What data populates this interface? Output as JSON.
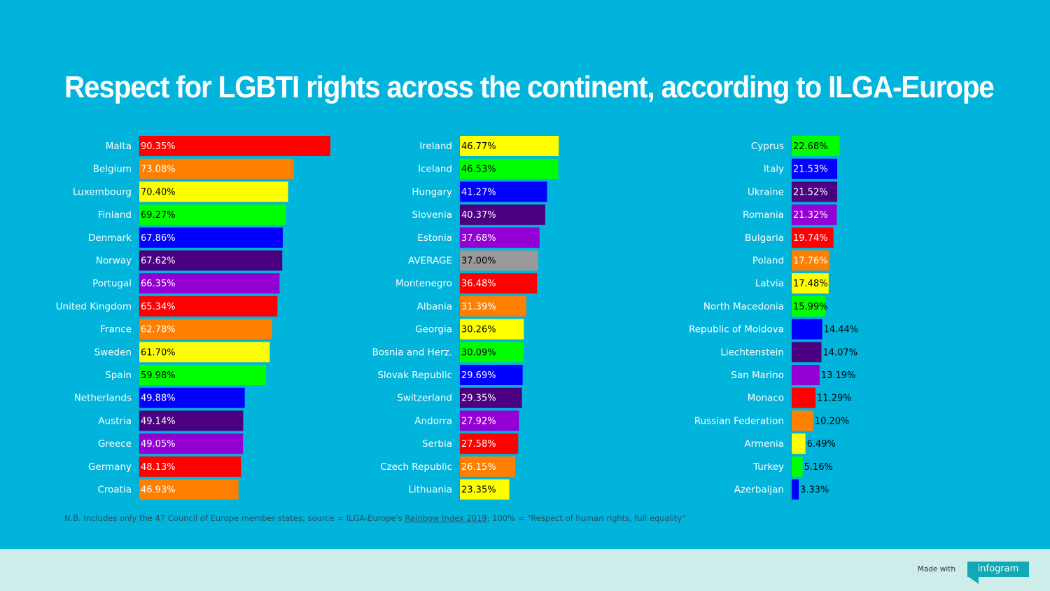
{
  "title": "Respect for LGBTI rights across the continent, according to ILGA-Europe",
  "footnote": {
    "prefix": "N.B. Includes only the 47 Council of Europe member states; source = ILGA-Europe's ",
    "link_text": "Rainbow Index 2019",
    "suffix": "; 100% = \"Respect of human rights, full equality\""
  },
  "footer": {
    "made_with": "Made with",
    "brand": "infogram"
  },
  "colors": {
    "background": "#00b4dc",
    "red": "#ff0000",
    "orange": "#ff8000",
    "yellow": "#ffff00",
    "green": "#00ff00",
    "blue": "#0000ff",
    "indigo": "#4b0082",
    "violet": "#9400d3",
    "gray": "#999999"
  },
  "chart_data": [
    {
      "type": "bar",
      "orientation": "horizontal",
      "title": "Respect for LGBTI rights across the continent, according to ILGA-Europe",
      "xlim": [
        0,
        100
      ],
      "value_suffix": "%",
      "categories": [
        "Malta",
        "Belgium",
        "Luxembourg",
        "Finland",
        "Denmark",
        "Norway",
        "Portugal",
        "United Kingdom",
        "France",
        "Sweden",
        "Spain",
        "Netherlands",
        "Austria",
        "Greece",
        "Germany",
        "Croatia"
      ],
      "values": [
        90.35,
        73.08,
        70.4,
        69.27,
        67.86,
        67.62,
        66.35,
        65.34,
        62.78,
        61.7,
        59.98,
        49.88,
        49.14,
        49.05,
        48.13,
        46.93
      ],
      "labels": [
        "90.35%",
        "73.08%",
        "70.40%",
        "69.27%",
        "67.86%",
        "67.62%",
        "66.35%",
        "65.34%",
        "62.78%",
        "61.70%",
        "59.98%",
        "49.88%",
        "49.14%",
        "49.05%",
        "48.13%",
        "46.93%"
      ],
      "bar_colors": [
        "red",
        "orange",
        "yellow",
        "green",
        "blue",
        "indigo",
        "violet",
        "red",
        "orange",
        "yellow",
        "green",
        "blue",
        "indigo",
        "violet",
        "red",
        "orange"
      ]
    },
    {
      "type": "bar",
      "orientation": "horizontal",
      "xlim": [
        0,
        100
      ],
      "value_suffix": "%",
      "categories": [
        "Ireland",
        "Iceland",
        "Hungary",
        "Slovenia",
        "Estonia",
        "AVERAGE",
        "Montenegro",
        "Albania",
        "Georgia",
        "Bosnia and Herz.",
        "Slovak Republic",
        "Switzerland",
        "Andorra",
        "Serbia",
        "Czech Republic",
        "Lithuania"
      ],
      "values": [
        46.77,
        46.53,
        41.27,
        40.37,
        37.68,
        37.0,
        36.48,
        31.39,
        30.26,
        30.09,
        29.69,
        29.35,
        27.92,
        27.58,
        26.15,
        23.35
      ],
      "labels": [
        "46.77%",
        "46.53%",
        "41.27%",
        "40.37%",
        "37.68%",
        "37.00%",
        "36.48%",
        "31.39%",
        "30.26%",
        "30.09%",
        "29.69%",
        "29.35%",
        "27.92%",
        "27.58%",
        "26.15%",
        "23.35%"
      ],
      "bar_colors": [
        "yellow",
        "green",
        "blue",
        "indigo",
        "violet",
        "gray",
        "red",
        "orange",
        "yellow",
        "green",
        "blue",
        "indigo",
        "violet",
        "red",
        "orange",
        "yellow"
      ]
    },
    {
      "type": "bar",
      "orientation": "horizontal",
      "xlim": [
        0,
        100
      ],
      "value_suffix": "%",
      "categories": [
        "Cyprus",
        "Italy",
        "Ukraine",
        "Romania",
        "Bulgaria",
        "Poland",
        "Latvia",
        "North Macedonia",
        "Republic of Moldova",
        "Liechtenstein",
        "San Marino",
        "Monaco",
        "Russian Federation",
        "Armenia",
        "Turkey",
        "Azerbaijan"
      ],
      "values": [
        22.68,
        21.53,
        21.52,
        21.32,
        19.74,
        17.76,
        17.48,
        15.99,
        14.44,
        14.07,
        13.19,
        11.29,
        10.2,
        6.49,
        5.16,
        3.33
      ],
      "labels": [
        "22.68%",
        "21.53%",
        "21.52%",
        "21.32%",
        "19.74%",
        "17.76%",
        "17.48%",
        "15.99%",
        "14.44%",
        "14.07%",
        "13.19%",
        "11.29%",
        "10.20%",
        "6.49%",
        "5.16%",
        "3.33%"
      ],
      "bar_colors": [
        "green",
        "blue",
        "indigo",
        "violet",
        "red",
        "orange",
        "yellow",
        "green",
        "blue",
        "indigo",
        "violet",
        "red",
        "orange",
        "yellow",
        "green",
        "blue"
      ]
    }
  ]
}
